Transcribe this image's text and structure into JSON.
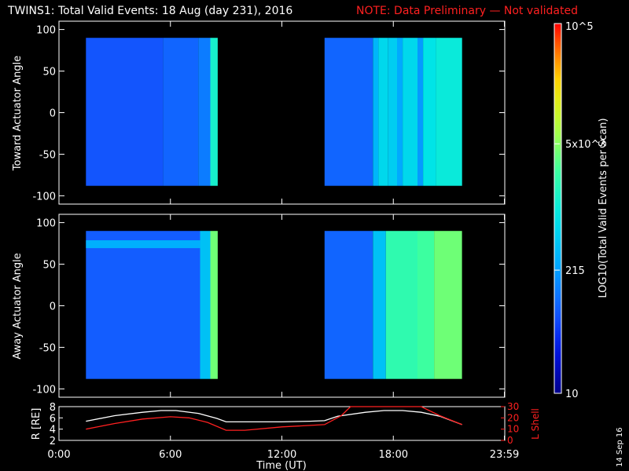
{
  "title": {
    "main": "TWINS1: Total Valid Events: 18 Aug (day 231), 2016",
    "note": "NOTE: Data Preliminary — Not validated"
  },
  "stamp": "14 Sep 16",
  "colors": {
    "background": "#000000",
    "axes": "#ffffff",
    "note": "#ff2020",
    "r_line": "#ffffff",
    "lshell_line": "#ff2020"
  },
  "colorbar": {
    "label": "LOG10(Total Valid Events per Scan)",
    "scale": "log",
    "range": [
      10,
      100000
    ],
    "ticks": [
      {
        "value": 10,
        "label": "10"
      },
      {
        "value": 215,
        "label": "215"
      },
      {
        "value": 5000,
        "label": "5x10^3"
      },
      {
        "value": 100000,
        "label": "10^5"
      }
    ]
  },
  "chart_data": [
    {
      "type": "heatmap",
      "name": "toward",
      "title": "",
      "xlabel": "",
      "ylabel": "Toward Actuator Angle",
      "xlim": [
        0,
        24
      ],
      "ylim": [
        -110,
        110
      ],
      "yticks": [
        100,
        50,
        0,
        -50,
        -100
      ],
      "grid": false,
      "data_blocks": [
        {
          "t_start": 1.45,
          "t_end": 8.55,
          "angle_range": [
            -88,
            90
          ],
          "columns": [
            {
              "t_end": 5.6,
              "log_value": 1.85
            },
            {
              "t_end": 7.5,
              "log_value": 1.95
            },
            {
              "t_end": 8.15,
              "log_value": 2.1
            },
            {
              "t_end": 8.55,
              "log_value": 3.1
            }
          ]
        },
        {
          "t_start": 14.3,
          "t_end": 21.7,
          "angle_range": [
            -88,
            90
          ],
          "columns": [
            {
              "t_end": 16.9,
              "log_value": 1.95
            },
            {
              "t_end": 17.2,
              "log_value": 2.5
            },
            {
              "t_end": 17.7,
              "log_value": 2.8
            },
            {
              "t_end": 18.2,
              "log_value": 2.7
            },
            {
              "t_end": 18.5,
              "log_value": 2.4
            },
            {
              "t_end": 19.3,
              "log_value": 2.8
            },
            {
              "t_end": 19.6,
              "log_value": 2.3
            },
            {
              "t_end": 20.3,
              "log_value": 2.9
            },
            {
              "t_end": 21.7,
              "log_value": 3.0
            }
          ]
        }
      ]
    },
    {
      "type": "heatmap",
      "name": "away",
      "title": "",
      "xlabel": "",
      "ylabel": "Away Actuator Angle",
      "xlim": [
        0,
        24
      ],
      "ylim": [
        -110,
        110
      ],
      "yticks": [
        100,
        50,
        0,
        -50,
        -100
      ],
      "grid": false,
      "data_blocks": [
        {
          "t_start": 1.45,
          "t_end": 8.55,
          "angle_range": [
            -88,
            90
          ],
          "band": {
            "angle_center": 74,
            "log_value": 2.45
          },
          "columns": [
            {
              "t_end": 7.6,
              "log_value": 1.9
            },
            {
              "t_end": 8.15,
              "log_value": 2.6
            },
            {
              "t_end": 8.55,
              "log_value": 3.6
            }
          ]
        },
        {
          "t_start": 14.3,
          "t_end": 21.7,
          "angle_range": [
            -88,
            90
          ],
          "columns": [
            {
              "t_end": 16.9,
              "log_value": 1.95
            },
            {
              "t_end": 17.6,
              "log_value": 2.6
            },
            {
              "t_end": 19.3,
              "log_value": 3.3
            },
            {
              "t_end": 20.2,
              "log_value": 3.4
            },
            {
              "t_end": 21.7,
              "log_value": 3.6
            }
          ]
        }
      ]
    },
    {
      "type": "line",
      "name": "orbit",
      "title": "",
      "xlabel": "Time (UT)",
      "ylabel": "R [RE]",
      "y2label": "L Shell",
      "xlim": [
        0,
        24
      ],
      "ylim": [
        2,
        8
      ],
      "y2lim": [
        0,
        30
      ],
      "yticks": [
        2,
        4,
        6,
        8
      ],
      "y2ticks": [
        0,
        10,
        20,
        30
      ],
      "xticks": [
        {
          "value": 0,
          "label": "0:00"
        },
        {
          "value": 6,
          "label": "6:00"
        },
        {
          "value": 12,
          "label": "12:00"
        },
        {
          "value": 18,
          "label": "18:00"
        },
        {
          "value": 23.98,
          "label": "23:59"
        }
      ],
      "grid": false,
      "series": [
        {
          "axis": "left",
          "x": [
            1.45,
            3.0,
            4.5,
            5.5,
            6.3,
            7.5,
            8.5,
            9.0,
            10.5,
            12.0,
            13.5,
            14.3,
            15.0,
            16.5,
            17.5,
            18.5,
            19.5,
            20.5,
            21.7
          ],
          "y": [
            5.4,
            6.4,
            7.0,
            7.3,
            7.3,
            6.8,
            5.9,
            5.3,
            5.3,
            5.3,
            5.4,
            5.5,
            6.3,
            7.0,
            7.3,
            7.3,
            7.0,
            6.3,
            4.8
          ]
        },
        {
          "axis": "right",
          "x": [
            1.45,
            3.0,
            4.5,
            6.0,
            7.0,
            8.0,
            9.0,
            10.0,
            12.0,
            14.3,
            15.2,
            15.7,
            19.5,
            20.5,
            21.7
          ],
          "y": [
            10,
            15,
            19,
            21,
            20,
            16,
            9,
            9,
            12,
            14,
            22,
            30,
            30,
            22,
            14
          ]
        }
      ]
    }
  ]
}
